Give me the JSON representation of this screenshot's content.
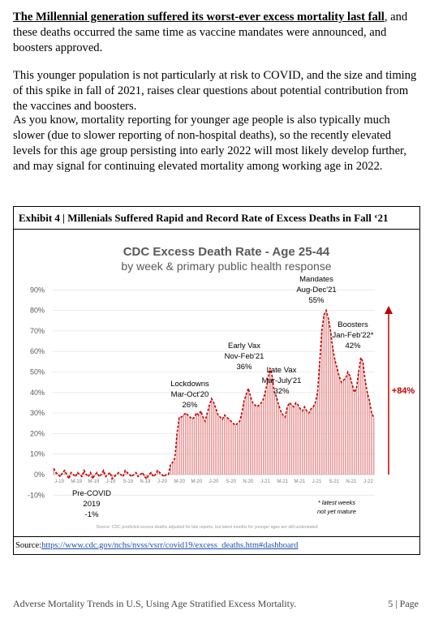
{
  "document": {
    "para1_bold": "The Millennial generation suffered its worst-ever excess mortality last fall",
    "para1_rest": ", and these deaths occurred the same time as vaccine mandates were announced, and boosters approved.",
    "para2": "This younger population is not particularly at risk to COVID, and the size and timing of this spike in fall of 2021, raises clear questions about potential contribution from the vaccines and boosters.",
    "para3": "As you know, mortality reporting for younger age people is also typically much slower (due to slower reporting of non-hospital deaths), so the recently elevated levels for this age group persisting into early 2022 will most likely develop further, and may signal for continuing elevated mortality among working age in 2022.",
    "exhibit_title": "Exhibit 4 | Millenials Suffered Rapid and Record Rate of Excess Deaths in Fall ‘21",
    "source_label": "Source:",
    "source_url": "https://www.cdc.gov/nchs/nvss/vsrr/covid19/excess_deaths.htm#dashboard",
    "footer_left": "Adverse Mortality Trends in U.S, Using Age Stratified Excess Mortality.",
    "footer_right": "5 | Page"
  },
  "chart_data": {
    "type": "bar",
    "title": "CDC Excess Death Rate - Age 25-44",
    "subtitle": "by week & primary public health response",
    "ylim": [
      -10,
      90
    ],
    "yticks": [
      "-10%",
      "0%",
      "10%",
      "20%",
      "30%",
      "40%",
      "50%",
      "60%",
      "70%",
      "80%",
      "90%"
    ],
    "xticks": [
      "J-19",
      "M-19",
      "M-19",
      "J-19",
      "S-19",
      "N-19",
      "J-20",
      "M-20",
      "M-20",
      "J-20",
      "S-20",
      "N-20",
      "J-21",
      "M-21",
      "M-21",
      "J-21",
      "S-21",
      "N-21",
      "J-22"
    ],
    "annotations": {
      "precovid": [
        "Pre-COVID",
        "2019",
        "-1%"
      ],
      "lockdowns": [
        "Lockdowns",
        "Mar-Oct'20",
        "26%"
      ],
      "early_vax": [
        "Early Vax",
        "Nov-Feb'21",
        "36%"
      ],
      "late_vax": [
        "Late Vax",
        "Mar-July'21",
        "32%"
      ],
      "mandates": [
        "Mandates",
        "Aug-Dec'21",
        "55%"
      ],
      "boosters": [
        "Boosters",
        "Jan-Feb'22*",
        "42%"
      ],
      "increase": "+84%",
      "latest_note": [
        "* latest weeks",
        "not yet mature"
      ],
      "footnote": "Source: CDC predicted excess deaths adjusted for late reports, but latest months for younger ages are still understated"
    },
    "series": [
      {
        "values": [
          3,
          1,
          0,
          -1,
          1,
          2,
          0,
          -2,
          1,
          0,
          -1,
          1,
          0,
          -1,
          2,
          0,
          -1,
          1,
          -2,
          0,
          1,
          -1,
          0,
          2,
          -1,
          0,
          1,
          -2,
          -1,
          0,
          1,
          0,
          -1,
          2,
          1,
          0,
          -1,
          0,
          1,
          -1,
          0,
          1,
          -1,
          -2,
          0,
          1,
          -1,
          0,
          2,
          1,
          0,
          -1,
          0,
          0,
          5,
          6,
          8,
          20,
          28,
          28,
          29,
          30,
          29,
          28,
          27,
          28,
          30,
          29,
          31,
          28,
          26,
          30,
          34,
          37,
          35,
          32,
          29,
          28,
          27,
          29,
          28,
          27,
          26,
          25,
          24,
          25,
          26,
          30,
          36,
          39,
          42,
          38,
          35,
          34,
          33,
          34,
          35,
          37,
          41,
          46,
          52,
          48,
          40,
          38,
          34,
          31,
          29,
          28,
          33,
          35,
          34,
          33,
          35,
          34,
          32,
          31,
          33,
          31,
          30,
          32,
          33,
          35,
          40,
          55,
          70,
          78,
          80,
          76,
          70,
          62,
          56,
          52,
          48,
          45,
          46,
          47,
          50,
          48,
          44,
          40,
          42,
          50,
          57,
          55,
          46,
          40,
          36,
          30,
          28
        ]
      }
    ]
  }
}
